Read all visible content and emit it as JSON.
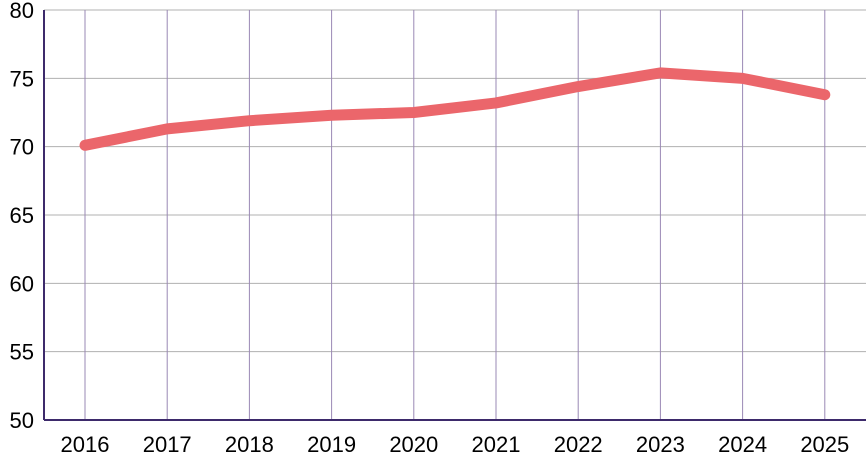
{
  "chart_data": {
    "type": "line",
    "title": "",
    "xlabel": "",
    "ylabel": "",
    "categories": [
      "2016",
      "2017",
      "2018",
      "2019",
      "2020",
      "2021",
      "2022",
      "2023",
      "2024",
      "2025"
    ],
    "series": [
      {
        "values": [
          70.1,
          71.3,
          71.9,
          72.3,
          72.5,
          73.2,
          74.4,
          75.4,
          75.0,
          73.8
        ],
        "color": "#eb666b"
      }
    ],
    "ylim": [
      50,
      80
    ],
    "yticks": [
      "50",
      "55",
      "60",
      "65",
      "70",
      "75",
      "80"
    ],
    "grid": true,
    "colors": {
      "grid_horizontal": "#b0b0b0",
      "grid_vertical": "#9a88b5",
      "axis": "#3d2a6b"
    }
  }
}
